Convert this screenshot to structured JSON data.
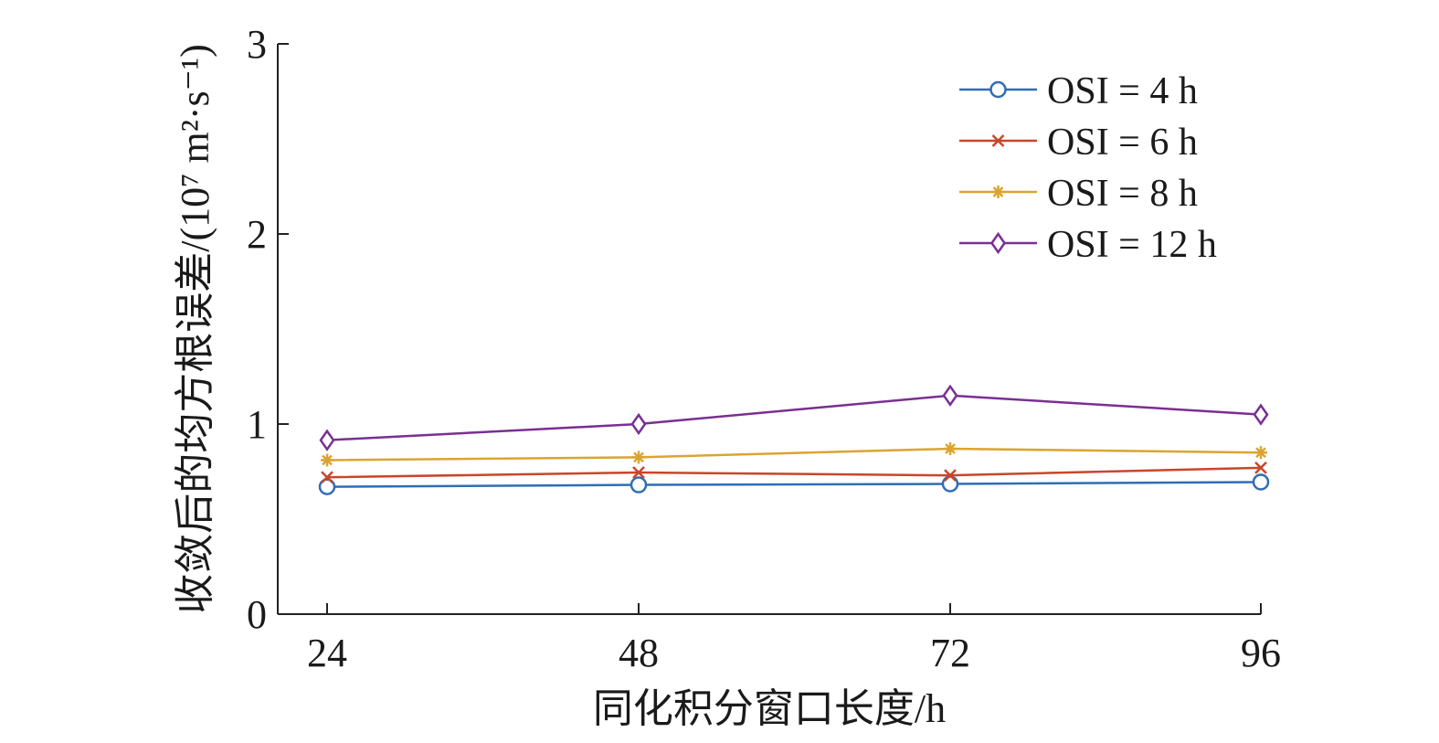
{
  "chart_data": {
    "type": "line",
    "categories": [
      "24",
      "48",
      "72",
      "96"
    ],
    "x": [
      24,
      48,
      72,
      96
    ],
    "xlabel": "同化积分窗口长度/h",
    "ylabel": "收敛后的均方根误差/(10⁷ m²·s⁻¹)",
    "ylim": [
      0,
      3
    ],
    "yticks": [
      "0",
      "1",
      "2",
      "3"
    ],
    "xticks": [
      "24",
      "48",
      "72",
      "96"
    ],
    "grid": false,
    "legend_position": "top-right",
    "series": [
      {
        "name": "OSI = 4 h",
        "values": [
          0.67,
          0.68,
          0.685,
          0.695
        ],
        "color": "#2f6db5",
        "marker": "circle"
      },
      {
        "name": "OSI = 6 h",
        "values": [
          0.72,
          0.745,
          0.73,
          0.77
        ],
        "color": "#c9462a",
        "marker": "x"
      },
      {
        "name": "OSI = 8 h",
        "values": [
          0.81,
          0.825,
          0.87,
          0.85
        ],
        "color": "#dba431",
        "marker": "star"
      },
      {
        "name": "OSI = 12 h",
        "values": [
          0.915,
          1.0,
          1.15,
          1.05
        ],
        "color": "#7a2f91",
        "marker": "diamond"
      }
    ]
  }
}
